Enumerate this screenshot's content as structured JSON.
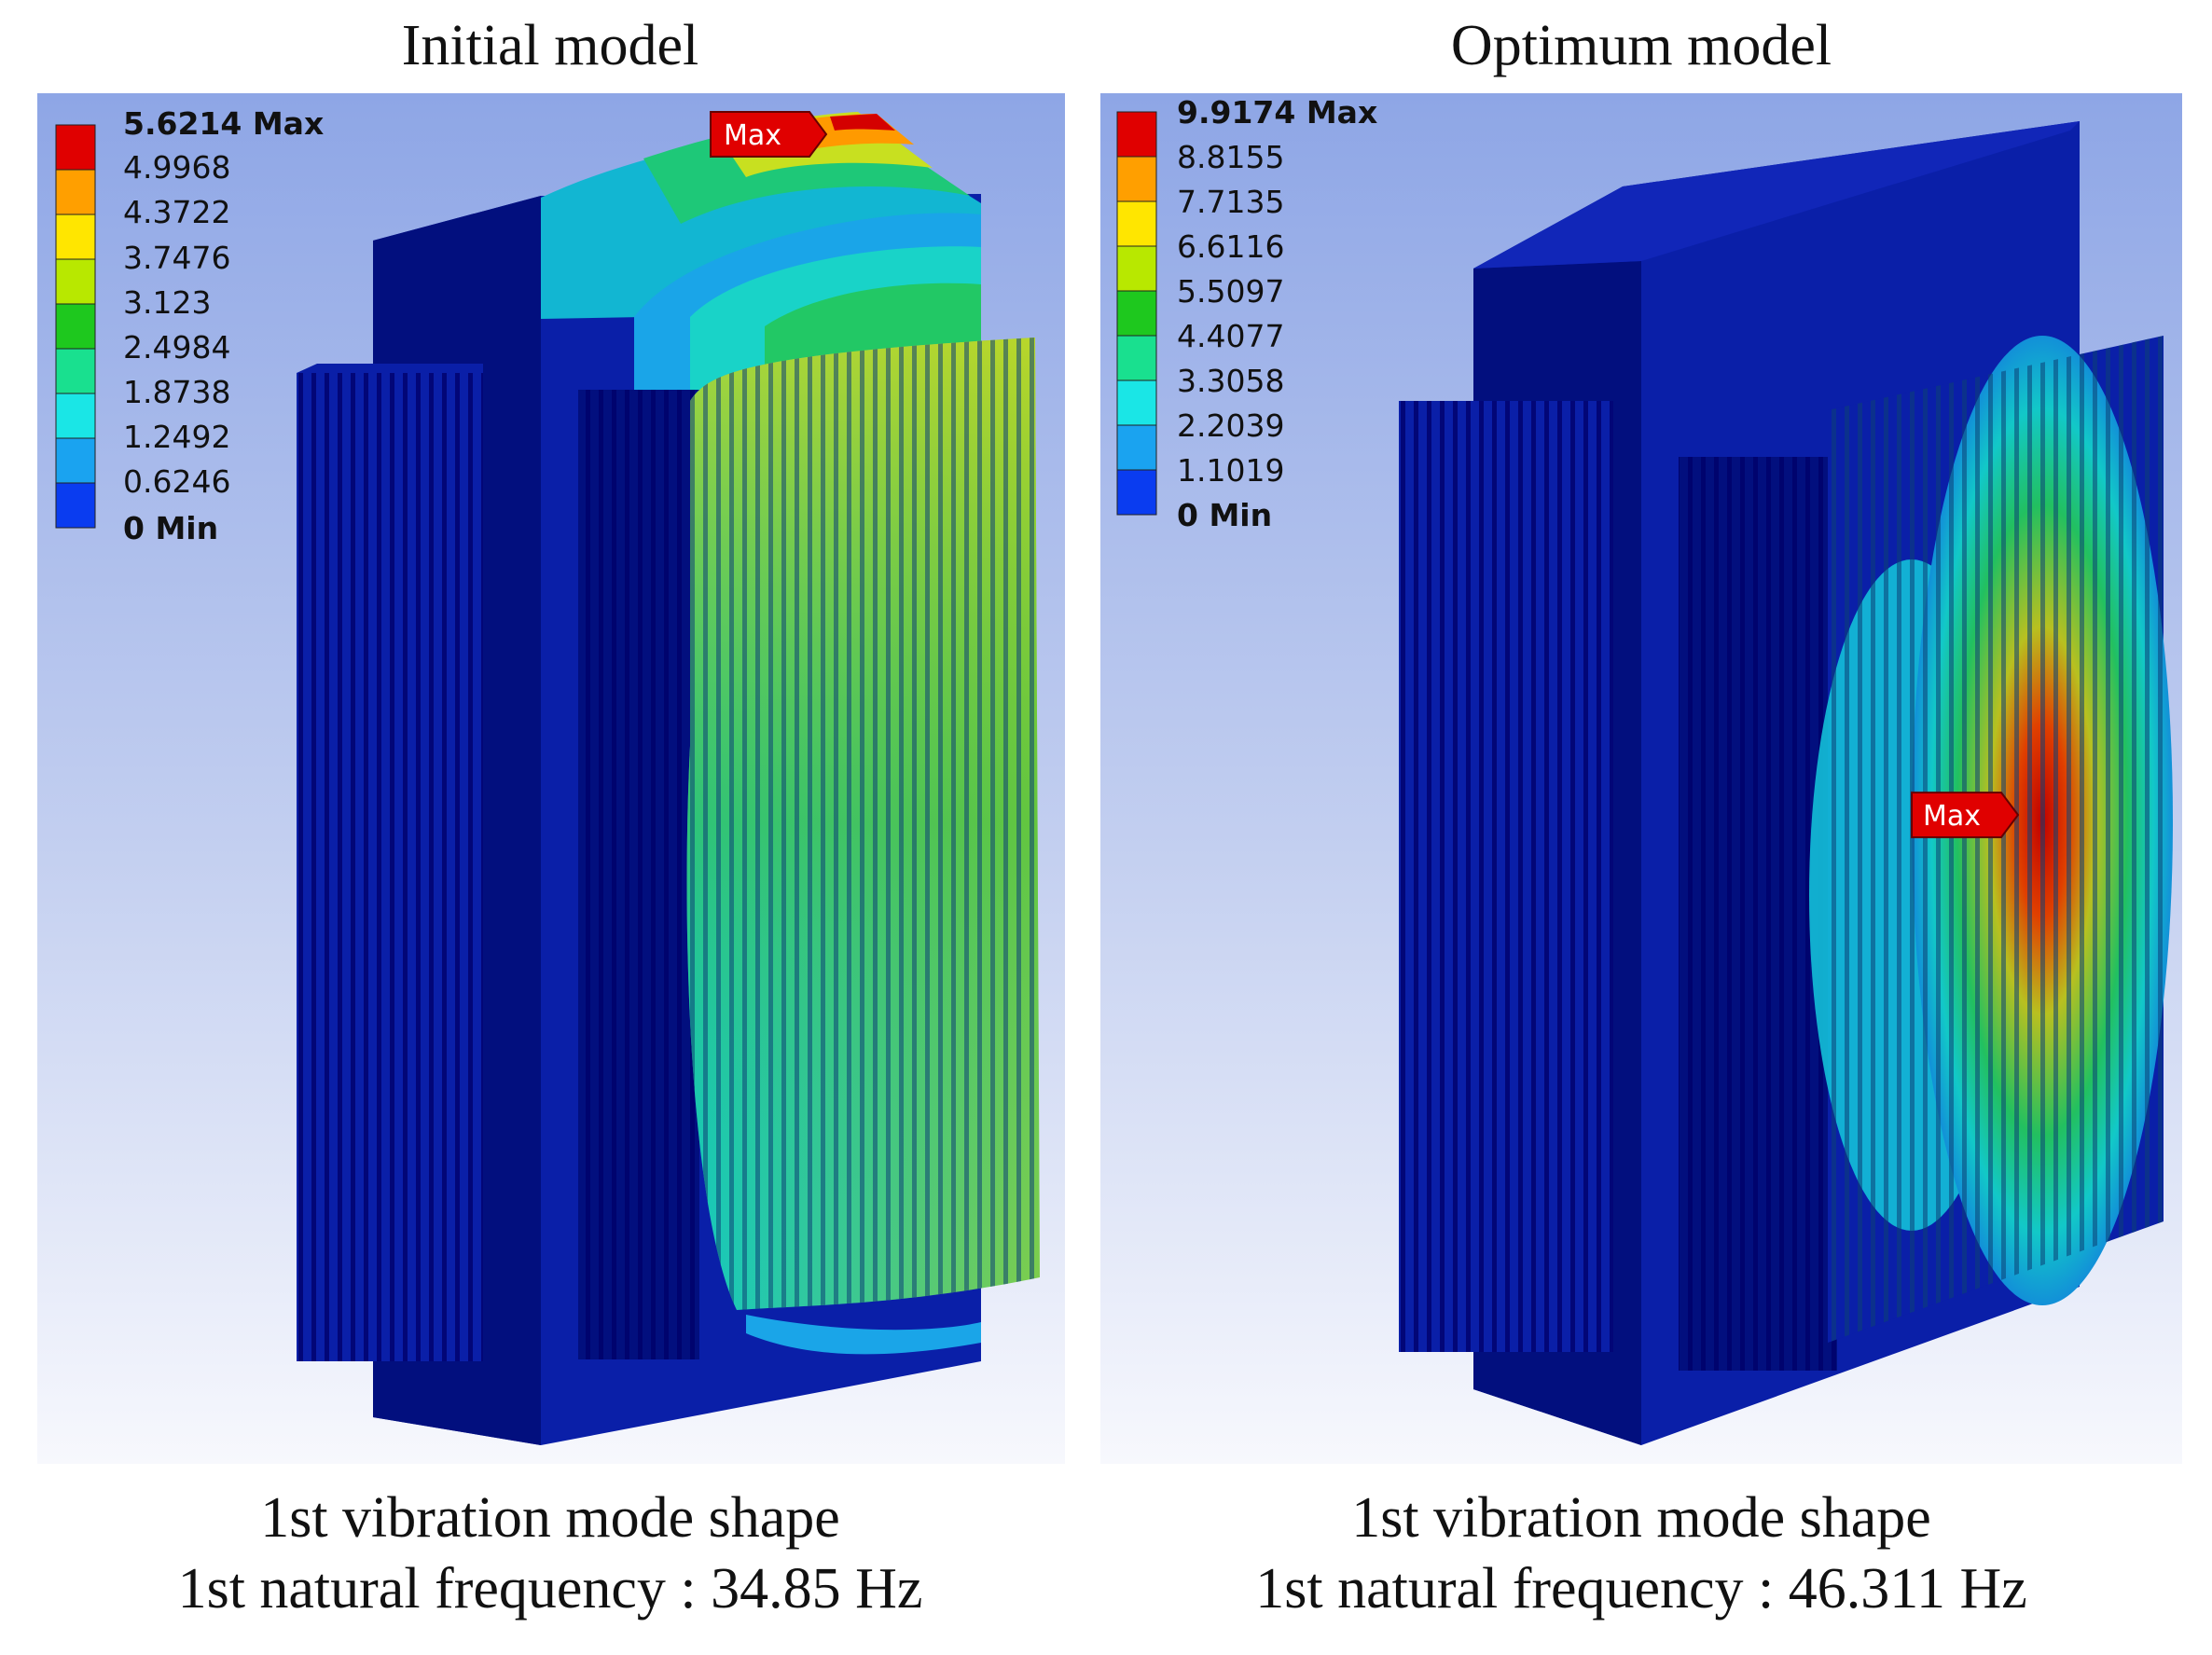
{
  "left": {
    "title": "Initial model",
    "legend": [
      "5.6214 Max",
      "4.9968",
      "4.3722",
      "3.7476",
      "3.123",
      "2.4984",
      "1.8738",
      "1.2492",
      "0.6246",
      "0 Min"
    ],
    "max_tag": "Max",
    "caption_line1": "1st vibration mode shape",
    "caption_line2": "1st natural frequency : 34.85 Hz"
  },
  "right": {
    "title": "Optimum model",
    "legend": [
      "9.9174 Max",
      "8.8155",
      "7.7135",
      "6.6116",
      "5.5097",
      "4.4077",
      "3.3058",
      "2.2039",
      "1.1019",
      "0 Min"
    ],
    "max_tag": "Max",
    "caption_line1": "1st vibration mode shape",
    "caption_line2": "1st natural frequency : 46.311 Hz"
  },
  "legend_colors": [
    "#e00000",
    "#ff9f00",
    "#ffe600",
    "#b8e800",
    "#1ec81e",
    "#19e08f",
    "#1ae6e6",
    "#1aa3f0",
    "#0a3cf0"
  ]
}
